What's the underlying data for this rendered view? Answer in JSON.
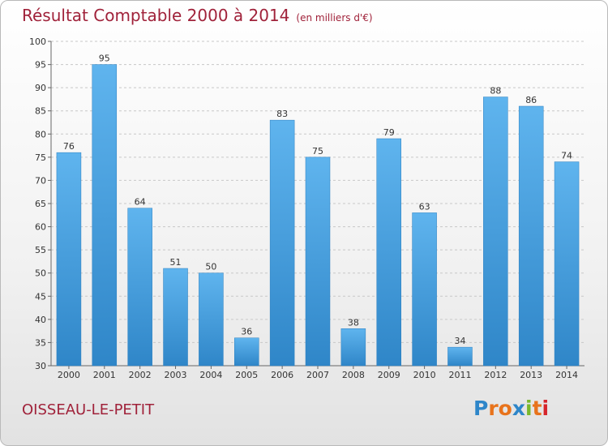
{
  "header": {
    "title": "Résultat Comptable 2000 à 2014",
    "subtitle": "(en milliers d'€)"
  },
  "footer": {
    "commune": "OISSEAU-LE-PETIT",
    "logo": "Proxiti"
  },
  "colors": {
    "bar": "#3f9ee0",
    "title": "#a0223a"
  },
  "chart_data": {
    "type": "bar",
    "title": "Résultat Comptable 2000 à 2014",
    "subtitle": "(en milliers d'€)",
    "xlabel": "",
    "ylabel": "",
    "categories": [
      "2000",
      "2001",
      "2002",
      "2003",
      "2004",
      "2005",
      "2006",
      "2007",
      "2008",
      "2009",
      "2010",
      "2011",
      "2012",
      "2013",
      "2014"
    ],
    "values": [
      76,
      95,
      64,
      51,
      50,
      36,
      83,
      75,
      38,
      79,
      63,
      34,
      88,
      86,
      74
    ],
    "ylim": [
      30,
      100
    ],
    "yticks": [
      30,
      35,
      40,
      45,
      50,
      55,
      60,
      65,
      70,
      75,
      80,
      85,
      90,
      95,
      100
    ],
    "grid": true,
    "data_labels": true
  }
}
